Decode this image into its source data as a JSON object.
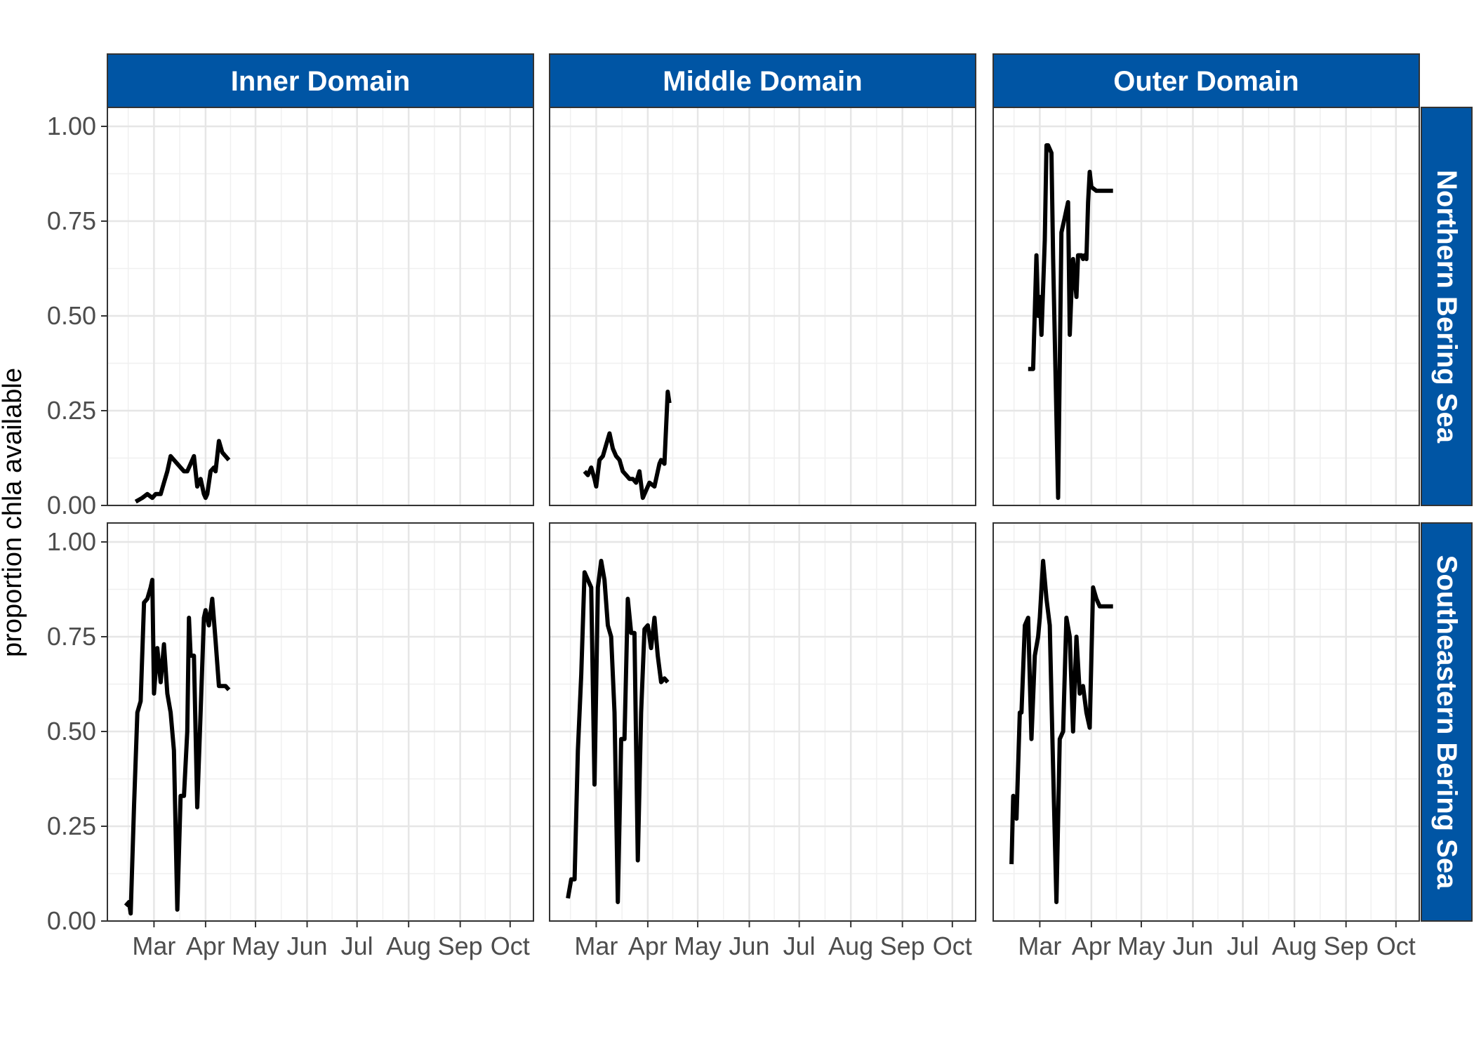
{
  "chart_data": {
    "type": "line",
    "ylabel": "proportion chla available",
    "xlabel": "",
    "ylim": [
      0,
      1.05
    ],
    "yticks": [
      0,
      0.25,
      0.5,
      0.75,
      1
    ],
    "ytick_labels": [
      "0.00",
      "0.25",
      "0.50",
      "0.75",
      "1.00"
    ],
    "xlim": [
      "2022-02-01",
      "2022-10-15"
    ],
    "xticks": [
      "2022-03-01",
      "2022-04-01",
      "2022-05-01",
      "2022-06-01",
      "2022-07-01",
      "2022-08-01",
      "2022-09-01",
      "2022-10-01"
    ],
    "xtick_labels": [
      "Mar",
      "Apr",
      "May",
      "Jun",
      "Jul",
      "Aug",
      "Sep",
      "Oct"
    ],
    "grid": true,
    "column_facets": [
      "Inner Domain",
      "Middle Domain",
      "Outer Domain"
    ],
    "row_facets": [
      "Northern Bering Sea",
      "Southeastern Bering Sea"
    ],
    "strip_color": "#0055A4",
    "line_color": "#000000",
    "panels": [
      {
        "row": "Northern Bering Sea",
        "col": "Inner Domain",
        "x": [
          "2022-02-18",
          "2022-02-22",
          "2022-02-25",
          "2022-02-28",
          "2022-03-02",
          "2022-03-05",
          "2022-03-07",
          "2022-03-09",
          "2022-03-11",
          "2022-03-13",
          "2022-03-15",
          "2022-03-17",
          "2022-03-19",
          "2022-03-21",
          "2022-03-23",
          "2022-03-25",
          "2022-03-27",
          "2022-03-29",
          "2022-03-31",
          "2022-04-01",
          "2022-04-02",
          "2022-04-04",
          "2022-04-06",
          "2022-04-07",
          "2022-04-09",
          "2022-04-11",
          "2022-04-13",
          "2022-04-15"
        ],
        "y": [
          0.01,
          0.02,
          0.03,
          0.02,
          0.03,
          0.03,
          0.06,
          0.09,
          0.13,
          0.12,
          0.11,
          0.1,
          0.09,
          0.09,
          0.11,
          0.13,
          0.05,
          0.07,
          0.03,
          0.02,
          0.03,
          0.09,
          0.1,
          0.09,
          0.17,
          0.14,
          0.13,
          0.12
        ]
      },
      {
        "row": "Northern Bering Sea",
        "col": "Middle Domain",
        "x": [
          "2022-02-22",
          "2022-02-24",
          "2022-02-26",
          "2022-02-28",
          "2022-03-01",
          "2022-03-03",
          "2022-03-05",
          "2022-03-07",
          "2022-03-09",
          "2022-03-11",
          "2022-03-13",
          "2022-03-15",
          "2022-03-17",
          "2022-03-19",
          "2022-03-21",
          "2022-03-23",
          "2022-03-25",
          "2022-03-27",
          "2022-03-29",
          "2022-03-31",
          "2022-04-02",
          "2022-04-05",
          "2022-04-08",
          "2022-04-09",
          "2022-04-11",
          "2022-04-13",
          "2022-04-14"
        ],
        "y": [
          0.09,
          0.08,
          0.1,
          0.07,
          0.05,
          0.12,
          0.13,
          0.16,
          0.19,
          0.15,
          0.13,
          0.12,
          0.09,
          0.08,
          0.07,
          0.07,
          0.06,
          0.09,
          0.02,
          0.04,
          0.06,
          0.05,
          0.11,
          0.12,
          0.11,
          0.3,
          0.27
        ]
      },
      {
        "row": "Northern Bering Sea",
        "col": "Outer Domain",
        "x": [
          "2022-02-22",
          "2022-02-25",
          "2022-02-27",
          "2022-02-28",
          "2022-03-01",
          "2022-03-02",
          "2022-03-04",
          "2022-03-05",
          "2022-03-06",
          "2022-03-08",
          "2022-03-09",
          "2022-03-12",
          "2022-03-14",
          "2022-03-16",
          "2022-03-17",
          "2022-03-18",
          "2022-03-19",
          "2022-03-20",
          "2022-03-21",
          "2022-03-22",
          "2022-03-23",
          "2022-03-24",
          "2022-03-26",
          "2022-03-27",
          "2022-03-28",
          "2022-03-29",
          "2022-03-30",
          "2022-03-31",
          "2022-04-01",
          "2022-04-04",
          "2022-04-08",
          "2022-04-09",
          "2022-04-10",
          "2022-04-12",
          "2022-04-14"
        ],
        "y": [
          0.36,
          0.36,
          0.66,
          0.5,
          0.55,
          0.45,
          0.7,
          0.95,
          0.95,
          0.93,
          0.65,
          0.02,
          0.72,
          0.76,
          0.78,
          0.8,
          0.45,
          0.56,
          0.65,
          0.6,
          0.55,
          0.66,
          0.66,
          0.65,
          0.66,
          0.65,
          0.8,
          0.88,
          0.84,
          0.83,
          0.83,
          0.83,
          0.83,
          0.83,
          0.83
        ]
      },
      {
        "row": "Southeastern Bering Sea",
        "col": "Inner Domain",
        "x": [
          "2022-02-12",
          "2022-02-14",
          "2022-02-15",
          "2022-02-17",
          "2022-02-19",
          "2022-02-21",
          "2022-02-23",
          "2022-02-25",
          "2022-02-27",
          "2022-02-28",
          "2022-03-01",
          "2022-03-03",
          "2022-03-05",
          "2022-03-07",
          "2022-03-09",
          "2022-03-11",
          "2022-03-13",
          "2022-03-15",
          "2022-03-17",
          "2022-03-19",
          "2022-03-21",
          "2022-03-22",
          "2022-03-23",
          "2022-03-25",
          "2022-03-27",
          "2022-03-29",
          "2022-03-31",
          "2022-04-01",
          "2022-04-03",
          "2022-04-05",
          "2022-04-07",
          "2022-04-09",
          "2022-04-11",
          "2022-04-13",
          "2022-04-15"
        ],
        "y": [
          0.04,
          0.05,
          0.02,
          0.3,
          0.55,
          0.58,
          0.84,
          0.85,
          0.88,
          0.9,
          0.6,
          0.72,
          0.63,
          0.73,
          0.6,
          0.55,
          0.45,
          0.03,
          0.33,
          0.33,
          0.5,
          0.8,
          0.7,
          0.7,
          0.3,
          0.55,
          0.8,
          0.82,
          0.78,
          0.85,
          0.74,
          0.62,
          0.62,
          0.62,
          0.61
        ]
      },
      {
        "row": "Southeastern Bering Sea",
        "col": "Middle Domain",
        "x": [
          "2022-02-12",
          "2022-02-14",
          "2022-02-16",
          "2022-02-18",
          "2022-02-20",
          "2022-02-22",
          "2022-02-24",
          "2022-02-26",
          "2022-02-28",
          "2022-03-02",
          "2022-03-04",
          "2022-03-06",
          "2022-03-08",
          "2022-03-10",
          "2022-03-12",
          "2022-03-14",
          "2022-03-16",
          "2022-03-18",
          "2022-03-20",
          "2022-03-22",
          "2022-03-24",
          "2022-03-26",
          "2022-03-28",
          "2022-03-30",
          "2022-04-01",
          "2022-04-03",
          "2022-04-05",
          "2022-04-07",
          "2022-04-09",
          "2022-04-11",
          "2022-04-13"
        ],
        "y": [
          0.06,
          0.11,
          0.11,
          0.45,
          0.65,
          0.92,
          0.9,
          0.88,
          0.36,
          0.88,
          0.95,
          0.9,
          0.78,
          0.75,
          0.55,
          0.05,
          0.48,
          0.48,
          0.85,
          0.76,
          0.76,
          0.16,
          0.55,
          0.77,
          0.78,
          0.72,
          0.8,
          0.7,
          0.63,
          0.64,
          0.63
        ]
      },
      {
        "row": "Southeastern Bering Sea",
        "col": "Outer Domain",
        "x": [
          "2022-02-12",
          "2022-02-13",
          "2022-02-15",
          "2022-02-17",
          "2022-02-18",
          "2022-02-20",
          "2022-02-22",
          "2022-02-24",
          "2022-02-26",
          "2022-02-28",
          "2022-03-01",
          "2022-03-03",
          "2022-03-05",
          "2022-03-07",
          "2022-03-09",
          "2022-03-11",
          "2022-03-13",
          "2022-03-15",
          "2022-03-17",
          "2022-03-19",
          "2022-03-21",
          "2022-03-23",
          "2022-03-25",
          "2022-03-27",
          "2022-03-29",
          "2022-03-31",
          "2022-04-02",
          "2022-04-04",
          "2022-04-06",
          "2022-04-08",
          "2022-04-10",
          "2022-04-12",
          "2022-04-14"
        ],
        "y": [
          0.15,
          0.33,
          0.27,
          0.55,
          0.55,
          0.78,
          0.8,
          0.48,
          0.7,
          0.75,
          0.8,
          0.95,
          0.85,
          0.78,
          0.4,
          0.05,
          0.48,
          0.5,
          0.8,
          0.75,
          0.5,
          0.75,
          0.6,
          0.62,
          0.55,
          0.51,
          0.88,
          0.85,
          0.83,
          0.83,
          0.83,
          0.83,
          0.83
        ]
      }
    ]
  }
}
